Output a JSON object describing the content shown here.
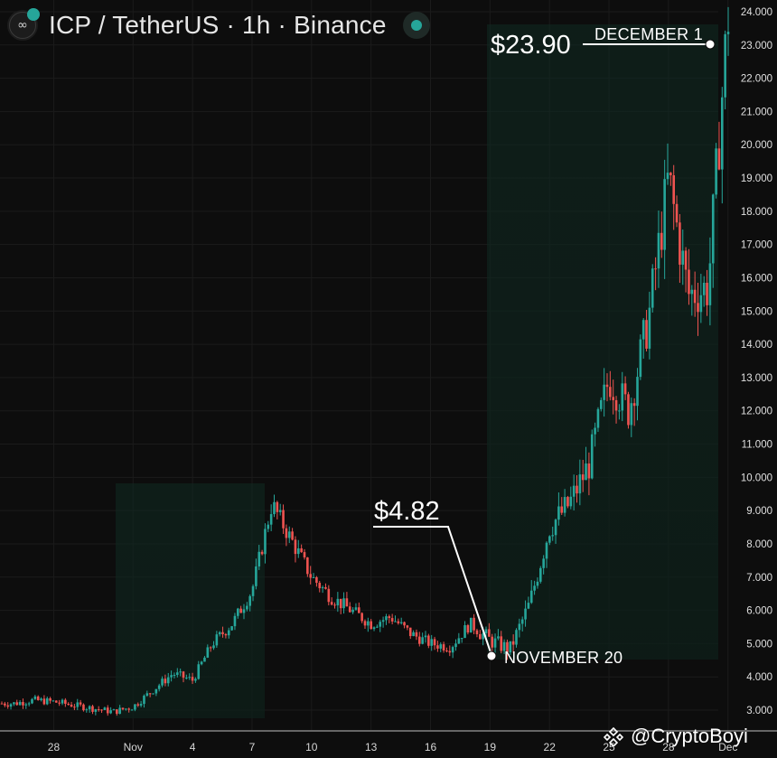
{
  "header": {
    "title": "ICP / TetherUS · 1h · Binance"
  },
  "annotations": {
    "low_price": "$4.82",
    "low_date": "NOVEMBER 20",
    "high_price": "$23.90",
    "high_date": "DECEMBER 1"
  },
  "watermark": "@CryptoBoyi",
  "colors": {
    "up": "#26a69a",
    "down": "#ef5350",
    "background": "#0d0d0d",
    "highlight": "#0f1a16"
  },
  "chart_data": {
    "type": "candlestick",
    "xlabel": "",
    "ylabel": "",
    "ylim": [
      2.5,
      24.0
    ],
    "x_ticks": [
      "28",
      "Nov",
      "4",
      "7",
      "10",
      "13",
      "16",
      "19",
      "22",
      "25",
      "28",
      "Dec"
    ],
    "y_ticks": [
      "3.000",
      "4.000",
      "5.000",
      "6.000",
      "7.000",
      "8.000",
      "9.000",
      "10.000",
      "11.000",
      "12.000",
      "13.000",
      "14.000",
      "15.000",
      "16.000",
      "17.000",
      "18.000",
      "19.000",
      "20.000",
      "21.000",
      "22.000",
      "23.000",
      "24.000"
    ],
    "grid": true,
    "price_path": [
      [
        "Oct 26",
        3.2
      ],
      [
        "Oct 27",
        3.3
      ],
      [
        "Oct 28",
        3.25
      ],
      [
        "Oct 29",
        3.15
      ],
      [
        "Oct 30",
        3.05
      ],
      [
        "Oct 31",
        2.95
      ],
      [
        "Nov 1",
        3.1
      ],
      [
        "Nov 2",
        3.6
      ],
      [
        "Nov 3",
        4.1
      ],
      [
        "Nov 4",
        3.9
      ],
      [
        "Nov 5",
        5.0
      ],
      [
        "Nov 6",
        5.6
      ],
      [
        "Nov 7",
        6.6
      ],
      [
        "Nov 8",
        9.2
      ],
      [
        "Nov 9",
        8.1
      ],
      [
        "Nov 10",
        7.0
      ],
      [
        "Nov 11",
        6.4
      ],
      [
        "Nov 12",
        6.0
      ],
      [
        "Nov 13",
        5.6
      ],
      [
        "Nov 14",
        5.8
      ],
      [
        "Nov 15",
        5.3
      ],
      [
        "Nov 16",
        5.0
      ],
      [
        "Nov 17",
        4.9
      ],
      [
        "Nov 18",
        5.6
      ],
      [
        "Nov 19",
        5.1
      ],
      [
        "Nov 20",
        4.82
      ],
      [
        "Nov 21",
        6.2
      ],
      [
        "Nov 22",
        8.5
      ],
      [
        "Nov 23",
        9.2
      ],
      [
        "Nov 24",
        10.4
      ],
      [
        "Nov 25",
        13.0
      ],
      [
        "Nov 26",
        12.0
      ],
      [
        "Nov 27",
        14.8
      ],
      [
        "Nov 28",
        19.0
      ],
      [
        "Nov 29",
        15.5
      ],
      [
        "Nov 30",
        15.7
      ],
      [
        "Dec 1",
        23.9
      ]
    ],
    "highlight_ranges": [
      [
        "Oct 31",
        "Nov 8"
      ],
      [
        "Nov 20",
        "Dec 1"
      ]
    ]
  }
}
